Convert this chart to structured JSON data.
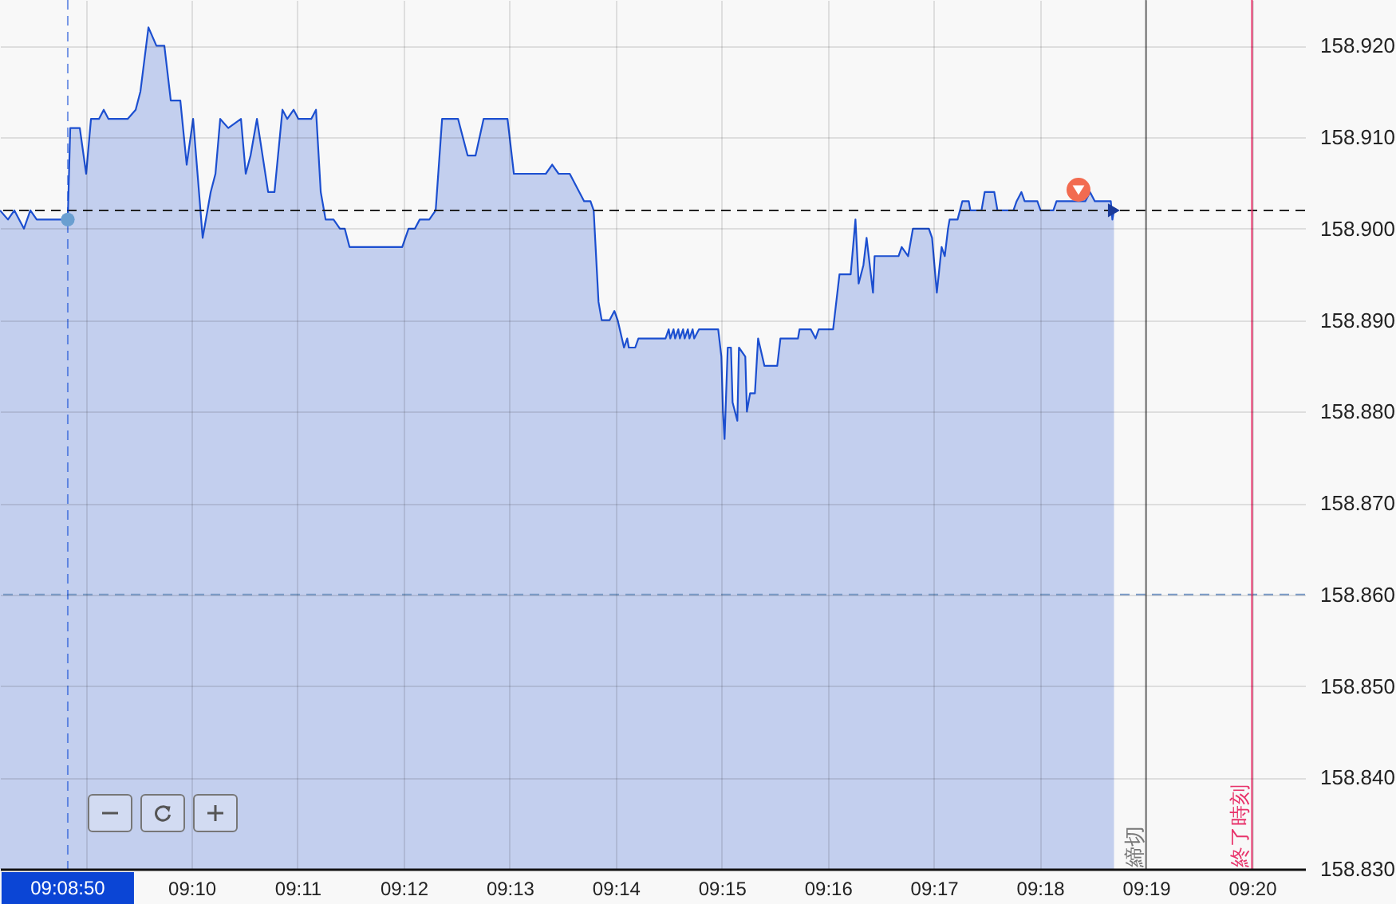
{
  "chart_data": {
    "type": "area",
    "xlim": [
      9.13657,
      9.34167
    ],
    "xticks": [
      {
        "value": 9.15,
        "label": null
      },
      {
        "value": 9.16667,
        "label": "09:10"
      },
      {
        "value": 9.18333,
        "label": "09:11"
      },
      {
        "value": 9.2,
        "label": "09:12"
      },
      {
        "value": 9.21667,
        "label": "09:13"
      },
      {
        "value": 9.23333,
        "label": "09:14"
      },
      {
        "value": 9.25,
        "label": "09:15"
      },
      {
        "value": 9.26667,
        "label": "09:16"
      },
      {
        "value": 9.28333,
        "label": "09:17"
      },
      {
        "value": 9.3,
        "label": "09:18"
      },
      {
        "value": 9.31667,
        "label": "09:19"
      },
      {
        "value": 9.33333,
        "label": "09:20"
      }
    ],
    "ylim": [
      158.83,
      158.925
    ],
    "yticks": [
      {
        "value": 158.83,
        "label": "158.830"
      },
      {
        "value": 158.84,
        "label": "158.840"
      },
      {
        "value": 158.85,
        "label": "158.850"
      },
      {
        "value": 158.86,
        "label": "158.860"
      },
      {
        "value": 158.87,
        "label": "158.870"
      },
      {
        "value": 158.88,
        "label": "158.880"
      },
      {
        "value": 158.89,
        "label": "158.890"
      },
      {
        "value": 158.9,
        "label": "158.900"
      },
      {
        "value": 158.91,
        "label": "158.910"
      },
      {
        "value": 158.92,
        "label": "158.920"
      }
    ],
    "grid": true,
    "ref_lines": [
      {
        "axis": "y",
        "value": 158.902,
        "color": "#222222",
        "line_style": "dashed"
      },
      {
        "axis": "y",
        "value": 158.86,
        "color": "#7b9cc8",
        "line_style": "dashed"
      },
      {
        "axis": "x",
        "value": 9.14722,
        "label": "09:08:50",
        "color": "#0b45d5",
        "line_style": "dashed"
      },
      {
        "axis": "x",
        "value": 9.31667,
        "label": "締切",
        "color": "#777777"
      },
      {
        "axis": "x",
        "value": 9.33333,
        "label": "終了時刻",
        "color": "#e8336b"
      }
    ],
    "series": [
      {
        "color": "#1c4fd0",
        "x": [
          9.13657,
          9.13782,
          9.13883,
          9.14033,
          9.14134,
          9.14234,
          9.14722,
          9.14761,
          9.14911,
          9.15011,
          9.15087,
          9.15212,
          9.15287,
          9.15362,
          9.15663,
          9.15789,
          9.15864,
          9.1599,
          9.16115,
          9.1624,
          9.16341,
          9.16491,
          9.16591,
          9.16692,
          9.16842,
          9.16968,
          9.17043,
          9.17118,
          9.17244,
          9.17444,
          9.17519,
          9.17595,
          9.17695,
          9.17871,
          9.17971,
          9.18096,
          9.18172,
          9.18272,
          9.18347,
          9.18548,
          9.18623,
          9.18698,
          9.18774,
          9.18899,
          9.18999,
          9.19075,
          9.1915,
          9.19978,
          9.20078,
          9.20178,
          9.20253,
          9.20404,
          9.20504,
          9.20605,
          9.20856,
          9.21006,
          9.21131,
          9.21257,
          9.21633,
          9.21733,
          9.22235,
          9.22335,
          9.22436,
          9.22611,
          9.22837,
          9.22937,
          9.22987,
          9.23063,
          9.23113,
          9.23238,
          9.23313,
          9.23364,
          9.23464,
          9.23514,
          9.23539,
          9.2364,
          9.2369,
          9.24116,
          9.24166,
          9.24191,
          9.24242,
          9.24267,
          9.24317,
          9.24342,
          9.24392,
          9.24417,
          9.24467,
          9.24492,
          9.24542,
          9.24567,
          9.24643,
          9.24944,
          9.24994,
          9.25019,
          9.25044,
          9.25094,
          9.25145,
          9.2517,
          9.25245,
          9.2527,
          9.2537,
          9.25395,
          9.25445,
          9.25521,
          9.25571,
          9.25671,
          9.25872,
          9.25922,
          9.26198,
          9.26223,
          9.26398,
          9.26474,
          9.26524,
          9.2675,
          9.2685,
          9.27026,
          9.27101,
          9.27151,
          9.27226,
          9.27276,
          9.27377,
          9.27402,
          9.27778,
          9.27828,
          9.27929,
          9.28004,
          9.28255,
          9.28305,
          9.2838,
          9.28455,
          9.28505,
          9.28556,
          9.28581,
          9.28706,
          9.28781,
          9.28882,
          9.28907,
          9.29082,
          9.29132,
          9.29283,
          9.29333,
          9.29584,
          9.29634,
          9.29709,
          9.2976,
          9.2996,
          9.3001,
          9.30211,
          9.30261,
          9.30713,
          9.30788,
          9.30863,
          9.31114,
          9.31139,
          9.31164
        ],
        "values": [
          158.902,
          158.901,
          158.902,
          158.9,
          158.902,
          158.901,
          158.901,
          158.911,
          158.911,
          158.906,
          158.912,
          158.912,
          158.913,
          158.912,
          158.912,
          158.913,
          158.915,
          158.922,
          158.92,
          158.92,
          158.914,
          158.914,
          158.907,
          158.912,
          158.899,
          158.904,
          158.906,
          158.912,
          158.911,
          158.912,
          158.906,
          158.908,
          158.912,
          158.904,
          158.904,
          158.913,
          158.912,
          158.913,
          158.912,
          158.912,
          158.913,
          158.904,
          158.901,
          158.901,
          158.9,
          158.9,
          158.898,
          158.898,
          158.9,
          158.9,
          158.901,
          158.901,
          158.902,
          158.912,
          158.912,
          158.908,
          158.908,
          158.912,
          158.912,
          158.906,
          158.906,
          158.907,
          158.906,
          158.906,
          158.903,
          158.903,
          158.902,
          158.892,
          158.89,
          158.89,
          158.891,
          158.89,
          158.887,
          158.888,
          158.887,
          158.887,
          158.888,
          158.888,
          158.889,
          158.888,
          158.889,
          158.888,
          158.889,
          158.888,
          158.889,
          158.888,
          158.889,
          158.888,
          158.889,
          158.888,
          158.889,
          158.889,
          158.886,
          158.88,
          158.877,
          158.887,
          158.887,
          158.881,
          158.879,
          158.887,
          158.886,
          158.88,
          158.882,
          158.882,
          158.888,
          158.885,
          158.885,
          158.888,
          158.888,
          158.889,
          158.889,
          158.888,
          158.889,
          158.889,
          158.895,
          158.895,
          158.901,
          158.894,
          158.896,
          158.899,
          158.893,
          158.897,
          158.897,
          158.898,
          158.897,
          158.9,
          158.9,
          158.899,
          158.893,
          158.898,
          158.897,
          158.9,
          158.901,
          158.901,
          158.903,
          158.903,
          158.902,
          158.902,
          158.904,
          158.904,
          158.902,
          158.902,
          158.903,
          158.904,
          158.903,
          158.903,
          158.902,
          158.902,
          158.903,
          158.903,
          158.904,
          158.903,
          158.903,
          158.901,
          158.902
        ]
      },
      {
        "type": "scatter",
        "color": "#6a9fd0",
        "marker": "circle",
        "x": [
          9.14722
        ],
        "values": [
          158.901
        ]
      },
      {
        "type": "scatter",
        "color": "#1a3a9a",
        "marker": "triangle",
        "x": [
          9.31164
        ],
        "values": [
          158.902
        ]
      }
    ]
  }
}
